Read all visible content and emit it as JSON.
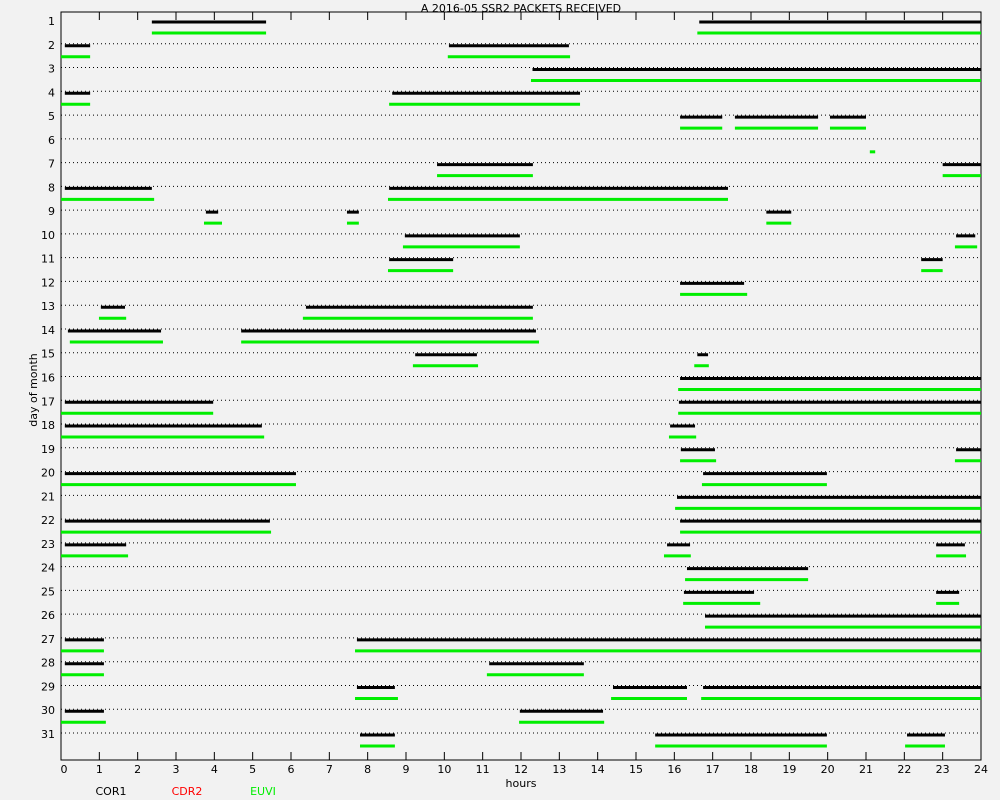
{
  "chart_data": {
    "type": "timeline",
    "title": "A  2016-05 SSR2 PACKETS RECEIVED",
    "xlabel": "hours",
    "ylabel": "day of month",
    "xlim": [
      0,
      24
    ],
    "xticks": [
      0,
      1,
      2,
      3,
      4,
      5,
      6,
      7,
      8,
      9,
      10,
      11,
      12,
      13,
      14,
      15,
      16,
      17,
      18,
      19,
      20,
      21,
      22,
      23,
      24
    ],
    "ylim": [
      1,
      31
    ],
    "yticks": [
      1,
      2,
      3,
      4,
      5,
      6,
      7,
      8,
      9,
      10,
      11,
      12,
      13,
      14,
      15,
      16,
      17,
      18,
      19,
      20,
      21,
      22,
      23,
      24,
      25,
      26,
      27,
      28,
      29,
      30,
      31
    ],
    "grid": true,
    "series": [
      {
        "name": "COR1",
        "color": "#000000",
        "segments": [
          [
            1,
            2.37,
            5.35
          ],
          [
            1,
            16.65,
            24
          ],
          [
            2,
            0.1,
            0.76
          ],
          [
            2,
            10.12,
            13.25
          ],
          [
            3,
            12.3,
            24
          ],
          [
            4,
            0.1,
            0.76
          ],
          [
            4,
            8.64,
            13.54
          ],
          [
            5,
            16.15,
            17.25
          ],
          [
            5,
            17.58,
            19.75
          ],
          [
            5,
            20.06,
            21.0
          ],
          [
            7,
            9.81,
            12.31
          ],
          [
            7,
            23.0,
            24
          ],
          [
            8,
            0.1,
            2.37
          ],
          [
            8,
            8.56,
            17.4
          ],
          [
            9,
            3.78,
            4.1
          ],
          [
            9,
            7.46,
            7.77
          ],
          [
            9,
            18.4,
            19.05
          ],
          [
            10,
            8.97,
            11.97
          ],
          [
            10,
            23.35,
            23.85
          ],
          [
            11,
            8.56,
            10.23
          ],
          [
            11,
            22.44,
            23.0
          ],
          [
            12,
            16.15,
            17.82
          ],
          [
            13,
            1.04,
            1.67
          ],
          [
            13,
            6.39,
            12.31
          ],
          [
            14,
            0.18,
            2.61
          ],
          [
            14,
            4.7,
            12.39
          ],
          [
            15,
            9.24,
            10.85
          ],
          [
            15,
            16.6,
            16.88
          ],
          [
            16,
            16.15,
            24
          ],
          [
            17,
            0.1,
            3.97
          ],
          [
            17,
            16.12,
            24
          ],
          [
            18,
            0.1,
            5.24
          ],
          [
            18,
            15.89,
            16.54
          ],
          [
            19,
            16.17,
            17.06
          ],
          [
            19,
            23.35,
            24
          ],
          [
            20,
            0.1,
            6.13
          ],
          [
            20,
            16.75,
            19.98
          ],
          [
            21,
            16.07,
            24
          ],
          [
            22,
            0.1,
            5.45
          ],
          [
            22,
            16.15,
            24
          ],
          [
            23,
            0.1,
            1.7
          ],
          [
            23,
            15.81,
            16.41
          ],
          [
            23,
            22.83,
            23.58
          ],
          [
            24,
            16.33,
            19.49
          ],
          [
            25,
            16.25,
            18.08
          ],
          [
            25,
            22.83,
            23.43
          ],
          [
            26,
            16.8,
            24
          ],
          [
            27,
            0.1,
            1.12
          ],
          [
            27,
            7.72,
            24
          ],
          [
            28,
            0.1,
            1.12
          ],
          [
            28,
            11.17,
            13.64
          ],
          [
            29,
            7.72,
            8.71
          ],
          [
            29,
            14.4,
            16.33
          ],
          [
            29,
            16.75,
            24
          ],
          [
            30,
            0.1,
            1.12
          ],
          [
            30,
            11.97,
            14.14
          ],
          [
            31,
            7.8,
            8.71
          ],
          [
            31,
            15.5,
            19.98
          ],
          [
            31,
            22.07,
            23.06
          ]
        ]
      },
      {
        "name": "CDR2",
        "color": "#ff0000",
        "segments": []
      },
      {
        "name": "EUVI",
        "color": "#00ee00",
        "segments": [
          [
            1,
            2.37,
            5.35
          ],
          [
            1,
            16.6,
            24
          ],
          [
            2,
            0,
            0.76
          ],
          [
            2,
            10.09,
            13.28
          ],
          [
            3,
            12.26,
            24
          ],
          [
            4,
            0,
            0.76
          ],
          [
            4,
            8.56,
            13.54
          ],
          [
            5,
            16.15,
            17.25
          ],
          [
            5,
            17.58,
            19.75
          ],
          [
            5,
            20.06,
            21.0
          ],
          [
            6,
            21.1,
            21.24
          ],
          [
            7,
            9.81,
            12.31
          ],
          [
            7,
            23.0,
            24
          ],
          [
            8,
            0,
            2.43
          ],
          [
            8,
            8.53,
            17.4
          ],
          [
            9,
            3.73,
            4.2
          ],
          [
            9,
            7.46,
            7.77
          ],
          [
            9,
            18.4,
            19.05
          ],
          [
            10,
            8.92,
            11.97
          ],
          [
            10,
            23.32,
            23.9
          ],
          [
            11,
            8.53,
            10.23
          ],
          [
            11,
            22.44,
            23.0
          ],
          [
            12,
            16.15,
            17.9
          ],
          [
            13,
            0.99,
            1.7
          ],
          [
            13,
            6.31,
            12.31
          ],
          [
            14,
            0.23,
            2.66
          ],
          [
            14,
            4.7,
            12.47
          ],
          [
            15,
            9.18,
            10.88
          ],
          [
            15,
            16.52,
            16.9
          ],
          [
            16,
            16.1,
            24
          ],
          [
            17,
            0,
            3.97
          ],
          [
            17,
            16.1,
            24
          ],
          [
            18,
            0,
            5.3
          ],
          [
            18,
            15.86,
            16.57
          ],
          [
            19,
            16.15,
            17.09
          ],
          [
            19,
            23.32,
            24
          ],
          [
            20,
            0,
            6.13
          ],
          [
            20,
            16.72,
            19.98
          ],
          [
            21,
            16.02,
            24
          ],
          [
            22,
            0,
            5.48
          ],
          [
            22,
            16.15,
            24
          ],
          [
            23,
            0,
            1.75
          ],
          [
            23,
            15.73,
            16.43
          ],
          [
            23,
            22.83,
            23.61
          ],
          [
            24,
            16.28,
            19.49
          ],
          [
            25,
            16.23,
            18.24
          ],
          [
            25,
            22.83,
            23.43
          ],
          [
            26,
            16.8,
            24
          ],
          [
            27,
            0,
            1.12
          ],
          [
            27,
            7.67,
            24
          ],
          [
            28,
            0,
            1.12
          ],
          [
            28,
            11.11,
            13.64
          ],
          [
            29,
            7.67,
            8.79
          ],
          [
            29,
            14.35,
            16.33
          ],
          [
            29,
            16.7,
            24
          ],
          [
            30,
            0,
            1.17
          ],
          [
            30,
            11.95,
            14.17
          ],
          [
            31,
            7.8,
            8.71
          ],
          [
            31,
            15.5,
            19.98
          ],
          [
            31,
            22.02,
            23.06
          ]
        ]
      }
    ]
  }
}
